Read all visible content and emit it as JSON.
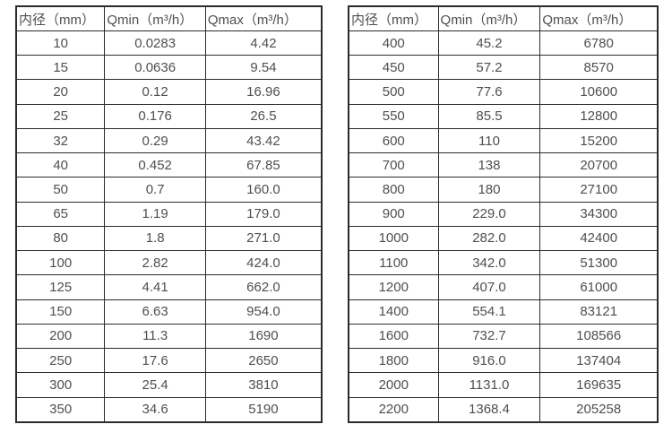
{
  "colors": {
    "background": "#ffffff",
    "border": "#2b2b2b",
    "text": "#4f4f4f"
  },
  "tables": [
    {
      "name": "flow-spec-table-small-diameters",
      "headers": [
        "内径（mm）",
        "Qmin（m³/h）",
        "Qmax（m³/h）"
      ],
      "rows": [
        [
          "10",
          "0.0283",
          "4.42"
        ],
        [
          "15",
          "0.0636",
          "9.54"
        ],
        [
          "20",
          "0.12",
          "16.96"
        ],
        [
          "25",
          "0.176",
          "26.5"
        ],
        [
          "32",
          "0.29",
          "43.42"
        ],
        [
          "40",
          "0.452",
          "67.85"
        ],
        [
          "50",
          "0.7",
          "160.0"
        ],
        [
          "65",
          "1.19",
          "179.0"
        ],
        [
          "80",
          "1.8",
          "271.0"
        ],
        [
          "100",
          "2.82",
          "424.0"
        ],
        [
          "125",
          "4.41",
          "662.0"
        ],
        [
          "150",
          "6.63",
          "954.0"
        ],
        [
          "200",
          "11.3",
          "1690"
        ],
        [
          "250",
          "17.6",
          "2650"
        ],
        [
          "300",
          "25.4",
          "3810"
        ],
        [
          "350",
          "34.6",
          "5190"
        ]
      ]
    },
    {
      "name": "flow-spec-table-large-diameters",
      "headers": [
        "内径（mm）",
        "Qmin（m³/h）",
        "Qmax（m³/h）"
      ],
      "rows": [
        [
          "400",
          "45.2",
          "6780"
        ],
        [
          "450",
          "57.2",
          "8570"
        ],
        [
          "500",
          "77.6",
          "10600"
        ],
        [
          "550",
          "85.5",
          "12800"
        ],
        [
          "600",
          "110",
          "15200"
        ],
        [
          "700",
          "138",
          "20700"
        ],
        [
          "800",
          "180",
          "27100"
        ],
        [
          "900",
          "229.0",
          "34300"
        ],
        [
          "1000",
          "282.0",
          "42400"
        ],
        [
          "1100",
          "342.0",
          "51300"
        ],
        [
          "1200",
          "407.0",
          "61000"
        ],
        [
          "1400",
          "554.1",
          "83121"
        ],
        [
          "1600",
          "732.7",
          "108566"
        ],
        [
          "1800",
          "916.0",
          "137404"
        ],
        [
          "2000",
          "1131.0",
          "169635"
        ],
        [
          "2200",
          "1368.4",
          "205258"
        ]
      ]
    }
  ]
}
